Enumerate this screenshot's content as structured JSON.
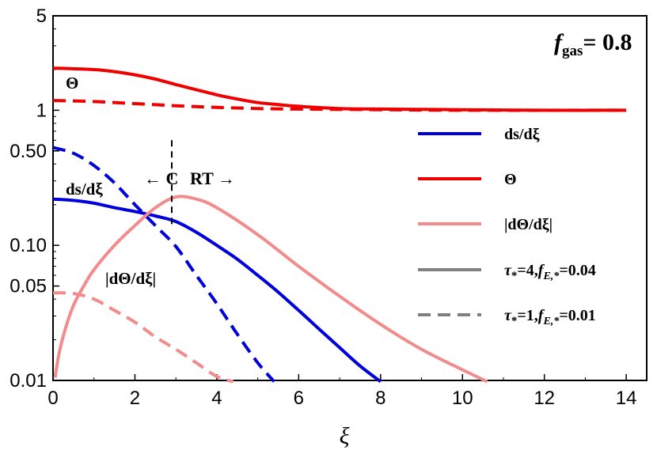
{
  "chart_data": {
    "type": "line",
    "title": "",
    "xlabel": "ξ",
    "ylabel": "",
    "xlim": [
      0,
      14.5
    ],
    "ylim": [
      0.01,
      5
    ],
    "yscale": "log",
    "grid": false,
    "legend_position": "right",
    "x_ticks": [
      "0",
      "2",
      "4",
      "6",
      "8",
      "10",
      "12",
      "14"
    ],
    "x_tick_values": [
      0,
      2,
      4,
      6,
      8,
      10,
      12,
      14
    ],
    "y_ticks": [
      "0.01",
      "0.05",
      "0.10",
      "0.50",
      "1",
      "5"
    ],
    "y_tick_values": [
      0.01,
      0.05,
      0.1,
      0.5,
      1,
      5
    ],
    "fgas": {
      "symbol": "f",
      "subscript": "gas",
      "value": "= 0.8"
    },
    "legend": [
      {
        "label": "ds/dξ",
        "color": "#0000dd",
        "style": "solid"
      },
      {
        "label": "Θ",
        "color": "#ee0000",
        "style": "solid"
      },
      {
        "label": "|dΘ/dξ|",
        "color": "#f28b8b",
        "style": "solid"
      },
      {
        "label": "τ*=4,fE,*=0.04",
        "label_parts": [
          "τ",
          "*",
          "=4,",
          "f",
          "E,*",
          "=0.04"
        ],
        "color": "#808080",
        "style": "solid"
      },
      {
        "label": "τ*=1,fE,*=0.01",
        "label_parts": [
          "τ",
          "*",
          "=1,",
          "f",
          "E,*",
          "=0.01"
        ],
        "color": "#808080",
        "style": "dashed"
      }
    ],
    "annotations": {
      "theta": "Θ",
      "dsdxi": "ds/dξ",
      "dthetadxi": "|dΘ/dξ|",
      "c_region": "← C",
      "rt_region": "RT →",
      "divider_x": 2.9
    },
    "series": [
      {
        "name": "Θ (τ*=4, fE,*=0.04)",
        "color": "#ee0000",
        "dash": "solid",
        "x": [
          0,
          1,
          1.5,
          2,
          2.5,
          3,
          3.5,
          4,
          4.5,
          5,
          5.5,
          6,
          7,
          8,
          10,
          12,
          14
        ],
        "y": [
          2.05,
          2.0,
          1.93,
          1.83,
          1.7,
          1.55,
          1.42,
          1.3,
          1.21,
          1.14,
          1.1,
          1.07,
          1.03,
          1.02,
          1.01,
          1.0,
          1.0
        ]
      },
      {
        "name": "Θ (τ*=1, fE,*=0.01)",
        "color": "#ee0000",
        "dash": "dashed",
        "x": [
          0,
          1,
          2,
          3,
          4,
          5,
          6,
          8,
          10,
          14
        ],
        "y": [
          1.18,
          1.16,
          1.12,
          1.08,
          1.05,
          1.03,
          1.02,
          1.01,
          1.0,
          1.0
        ]
      },
      {
        "name": "ds/dξ (τ*=4, fE,*=0.04)",
        "color": "#0000dd",
        "dash": "solid",
        "x": [
          0,
          0.5,
          1,
          1.5,
          2,
          2.5,
          3,
          3.5,
          4,
          4.5,
          5,
          5.5,
          6,
          6.5,
          7,
          7.5,
          8
        ],
        "y": [
          0.22,
          0.215,
          0.205,
          0.19,
          0.178,
          0.165,
          0.15,
          0.125,
          0.1,
          0.079,
          0.06,
          0.045,
          0.033,
          0.024,
          0.0175,
          0.0128,
          0.0098
        ]
      },
      {
        "name": "ds/dξ (τ*=1, fE,*=0.01)",
        "color": "#0000dd",
        "dash": "dashed",
        "x": [
          0,
          0.5,
          1,
          1.5,
          2,
          2.5,
          3,
          3.5,
          4,
          4.5,
          5,
          5.4
        ],
        "y": [
          0.53,
          0.48,
          0.39,
          0.29,
          0.2,
          0.14,
          0.098,
          0.06,
          0.037,
          0.022,
          0.0135,
          0.0098
        ]
      },
      {
        "name": "|dΘ/dξ| (τ*=4, fE,*=0.04)",
        "color": "#f28b8b",
        "dash": "solid",
        "x": [
          0.05,
          0.15,
          0.3,
          0.5,
          0.75,
          1,
          1.5,
          2,
          2.5,
          3,
          3.5,
          4,
          5,
          6,
          7,
          8,
          9,
          10,
          10.6
        ],
        "y": [
          0.0105,
          0.016,
          0.024,
          0.036,
          0.05,
          0.066,
          0.1,
          0.14,
          0.19,
          0.228,
          0.22,
          0.19,
          0.12,
          0.07,
          0.042,
          0.026,
          0.017,
          0.012,
          0.0098
        ]
      },
      {
        "name": "|dΘ/dξ| (τ*=1, fE,*=0.01)",
        "color": "#f28b8b",
        "dash": "dashed",
        "x": [
          0,
          0.5,
          1,
          1.5,
          2,
          2.5,
          3,
          3.5,
          4,
          4.4
        ],
        "y": [
          0.0445,
          0.044,
          0.04,
          0.033,
          0.027,
          0.021,
          0.017,
          0.0135,
          0.0107,
          0.0098
        ]
      }
    ]
  }
}
